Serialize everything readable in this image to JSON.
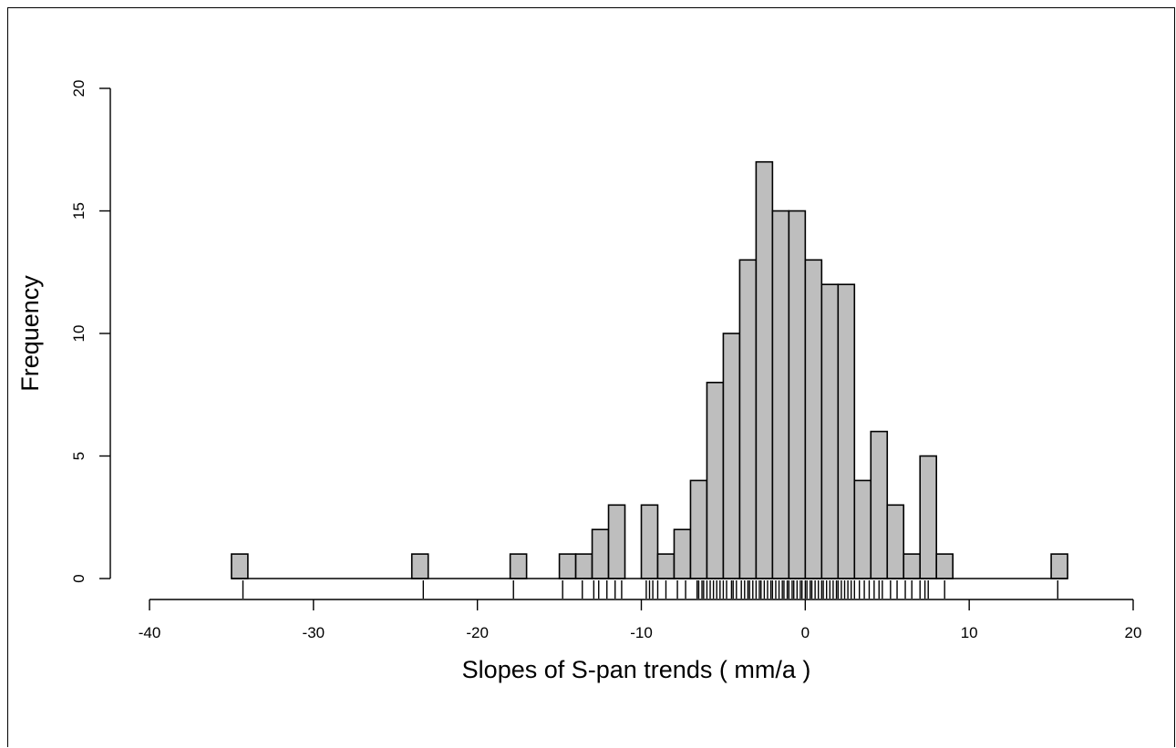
{
  "chart_data": {
    "type": "bar",
    "xlabel": "Slopes of S-pan trends ( mm/a  )",
    "ylabel": "Frequency",
    "xlim": [
      -40,
      20
    ],
    "ylim": [
      0,
      20
    ],
    "x_ticks": [
      "-40",
      "-30",
      "-20",
      "-10",
      "0",
      "10",
      "20"
    ],
    "y_ticks": [
      "0",
      "5",
      "10",
      "15",
      "20"
    ],
    "bin_width": 1,
    "bins": [
      {
        "start": -35,
        "count": 1
      },
      {
        "start": -24,
        "count": 1
      },
      {
        "start": -18,
        "count": 1
      },
      {
        "start": -15,
        "count": 1
      },
      {
        "start": -14,
        "count": 1
      },
      {
        "start": -13,
        "count": 2
      },
      {
        "start": -12,
        "count": 3
      },
      {
        "start": -10,
        "count": 3
      },
      {
        "start": -9,
        "count": 1
      },
      {
        "start": -8,
        "count": 2
      },
      {
        "start": -7,
        "count": 4
      },
      {
        "start": -6,
        "count": 8
      },
      {
        "start": -5,
        "count": 10
      },
      {
        "start": -4,
        "count": 13
      },
      {
        "start": -3,
        "count": 17
      },
      {
        "start": -2,
        "count": 15
      },
      {
        "start": -1,
        "count": 15
      },
      {
        "start": 0,
        "count": 13
      },
      {
        "start": 1,
        "count": 12
      },
      {
        "start": 2,
        "count": 12
      },
      {
        "start": 3,
        "count": 4
      },
      {
        "start": 4,
        "count": 6
      },
      {
        "start": 5,
        "count": 3
      },
      {
        "start": 6,
        "count": 1
      },
      {
        "start": 7,
        "count": 5
      },
      {
        "start": 8,
        "count": 1
      },
      {
        "start": 15,
        "count": 1
      }
    ],
    "rug": [
      -34.3,
      -23.3,
      -17.8,
      -14.8,
      -13.6,
      -12.9,
      -12.6,
      -12.1,
      -11.6,
      -11.2,
      -9.7,
      -9.5,
      -9.3,
      -9.0,
      -8.5,
      -7.8,
      -7.3,
      -6.6,
      -6.5,
      -6.3,
      -6.2,
      -6.0,
      -5.8,
      -5.6,
      -5.4,
      -5.2,
      -5.0,
      -4.8,
      -4.5,
      -4.4,
      -4.2,
      -3.9,
      -3.7,
      -3.5,
      -3.4,
      -3.2,
      -3.0,
      -2.8,
      -2.7,
      -2.5,
      -2.3,
      -2.1,
      -2.0,
      -1.8,
      -1.6,
      -1.4,
      -1.3,
      -1.1,
      -1.0,
      -0.8,
      -0.7,
      -0.5,
      -0.3,
      -0.2,
      0.0,
      0.1,
      0.3,
      0.4,
      0.6,
      0.8,
      1.0,
      1.1,
      1.3,
      1.5,
      1.7,
      1.9,
      2.0,
      2.2,
      2.4,
      2.6,
      2.8,
      3.0,
      3.3,
      3.6,
      3.9,
      4.2,
      4.5,
      4.7,
      5.2,
      5.6,
      6.1,
      6.5,
      7.0,
      7.3,
      7.5,
      8.5,
      15.4
    ]
  }
}
